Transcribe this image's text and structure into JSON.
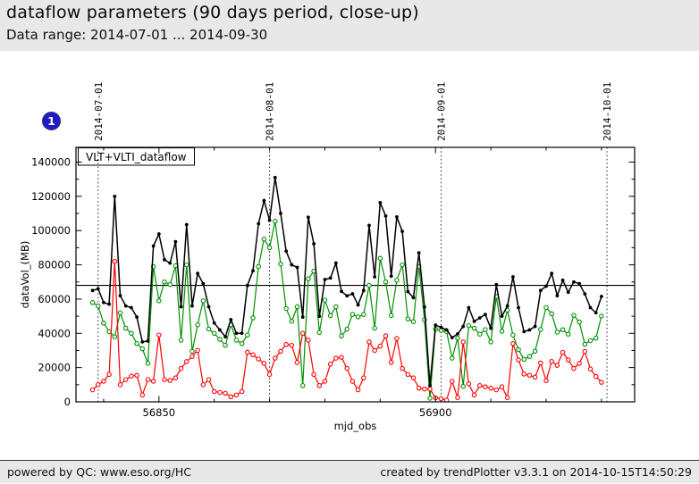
{
  "header": {
    "title": "dataflow parameters (90 days period, close-up)",
    "subtitle": "Data range: 2014-07-01 ... 2014-09-30"
  },
  "badge": {
    "label": "1",
    "color": "#1f1bc8"
  },
  "footer": {
    "left": "powered by QC: www.eso.org/HC",
    "right": "created by trendPlotter v3.3.1 on 2014-10-15T14:50:29"
  },
  "chart_data": {
    "type": "line",
    "legend": "VLT+VLTI_dataflow",
    "xlabel": "mjd_obs",
    "ylabel": "dataVol_(MB)",
    "xlim": [
      56835,
      56936
    ],
    "ylim": [
      0,
      148600
    ],
    "x_major_ticks": [
      56850,
      56900
    ],
    "x_minor_ticks": [
      56840,
      56860,
      56870,
      56880,
      56890,
      56910,
      56920,
      56930
    ],
    "y_major_ticks": [
      0,
      20000,
      40000,
      60000,
      80000,
      100000,
      120000,
      140000
    ],
    "y_minor_ticks": [
      10000,
      30000,
      50000,
      70000,
      90000,
      110000,
      130000
    ],
    "date_lines": [
      {
        "label": "2014-07-01",
        "mjd": 56839
      },
      {
        "label": "2014-08-01",
        "mjd": 56870
      },
      {
        "label": "2014-09-01",
        "mjd": 56901
      },
      {
        "label": "2014-10-01",
        "mjd": 56931
      }
    ],
    "avg_line": 68000,
    "x": [
      56838,
      56839,
      56840,
      56841,
      56842,
      56843,
      56844,
      56845,
      56846,
      56847,
      56848,
      56849,
      56850,
      56851,
      56852,
      56853,
      56854,
      56855,
      56856,
      56857,
      56858,
      56859,
      56860,
      56861,
      56862,
      56863,
      56864,
      56865,
      56866,
      56867,
      56868,
      56869,
      56870,
      56871,
      56872,
      56873,
      56874,
      56875,
      56876,
      56877,
      56878,
      56879,
      56880,
      56881,
      56882,
      56883,
      56884,
      56885,
      56886,
      56887,
      56888,
      56889,
      56890,
      56891,
      56892,
      56893,
      56894,
      56895,
      56896,
      56897,
      56898,
      56899,
      56900,
      56901,
      56902,
      56903,
      56904,
      56905,
      56906,
      56907,
      56908,
      56909,
      56910,
      56911,
      56912,
      56913,
      56914,
      56915,
      56916,
      56917,
      56918,
      56919,
      56920,
      56921,
      56922,
      56923,
      56924,
      56925,
      56926,
      56927,
      56928,
      56929,
      56930
    ],
    "series": [
      {
        "name": "black",
        "color": "#000000",
        "marker": "filled",
        "values": [
          65000,
          66000,
          58000,
          57000,
          120000,
          62000,
          56000,
          55000,
          49500,
          35000,
          35500,
          91000,
          98000,
          83000,
          81000,
          93500,
          55500,
          103500,
          56000,
          75000,
          69000,
          55500,
          46000,
          42000,
          38000,
          48000,
          40000,
          40000,
          68000,
          76500,
          104000,
          117500,
          106000,
          131000,
          110000,
          88000,
          80000,
          78500,
          49500,
          107800,
          92300,
          50000,
          71400,
          72300,
          81000,
          64500,
          61900,
          63100,
          56600,
          65000,
          103000,
          73000,
          116300,
          108500,
          73400,
          108000,
          99500,
          64400,
          60800,
          87000,
          55400,
          9600,
          44800,
          43500,
          42000,
          37500,
          39700,
          44000,
          55000,
          47000,
          49000,
          51000,
          43000,
          68500,
          50000,
          56000,
          73000,
          55000,
          41000,
          42000,
          44000,
          65000,
          67500,
          75000,
          62000,
          71000,
          64000,
          70000,
          69000,
          63000,
          55000,
          52000,
          61500
        ]
      },
      {
        "name": "green",
        "color": "#009000",
        "marker": "open",
        "values": [
          58000,
          56000,
          46000,
          41000,
          38000,
          52000,
          43000,
          40000,
          34000,
          31000,
          22500,
          79000,
          59000,
          70000,
          68500,
          79500,
          36000,
          80000,
          29500,
          45000,
          59000,
          42500,
          40000,
          36500,
          33000,
          45000,
          36000,
          34000,
          39000,
          49000,
          79000,
          95000,
          90000,
          105500,
          80500,
          54500,
          47000,
          55500,
          9500,
          71800,
          76300,
          40500,
          59400,
          50300,
          55500,
          38500,
          42400,
          51100,
          49600,
          51000,
          68000,
          43000,
          83800,
          70000,
          50400,
          71000,
          80000,
          48400,
          46800,
          79000,
          47900,
          2100,
          42500,
          41700,
          41000,
          25500,
          37200,
          9000,
          44500,
          43000,
          39500,
          42200,
          35000,
          61500,
          41200,
          53500,
          39000,
          30500,
          24800,
          26500,
          29600,
          42300,
          55100,
          51400,
          40700,
          42100,
          39500,
          50500,
          46600,
          33600,
          35800,
          37200,
          50100
        ]
      },
      {
        "name": "red",
        "color": "#ff0000",
        "marker": "open",
        "values": [
          7000,
          10000,
          12000,
          16000,
          82000,
          10000,
          13000,
          15000,
          15500,
          4000,
          13000,
          12000,
          39000,
          13000,
          12500,
          14000,
          19500,
          23500,
          26500,
          30000,
          10000,
          13000,
          6000,
          5500,
          5000,
          3000,
          4000,
          6000,
          29000,
          27500,
          25000,
          22500,
          16000,
          25500,
          29500,
          33500,
          33000,
          23000,
          40000,
          36000,
          16000,
          9500,
          12000,
          22000,
          25500,
          26000,
          19500,
          12000,
          7000,
          14000,
          35000,
          30000,
          32500,
          38500,
          23000,
          37000,
          19500,
          16000,
          14000,
          8000,
          7500,
          7500,
          2300,
          1800,
          1000,
          12000,
          2500,
          35000,
          10500,
          4000,
          9500,
          8800,
          8000,
          7000,
          8800,
          2500,
          34000,
          24500,
          16200,
          15500,
          14400,
          22700,
          12400,
          23600,
          21300,
          28900,
          24500,
          19500,
          22400,
          29400,
          19200,
          14800,
          11400
        ]
      }
    ]
  }
}
